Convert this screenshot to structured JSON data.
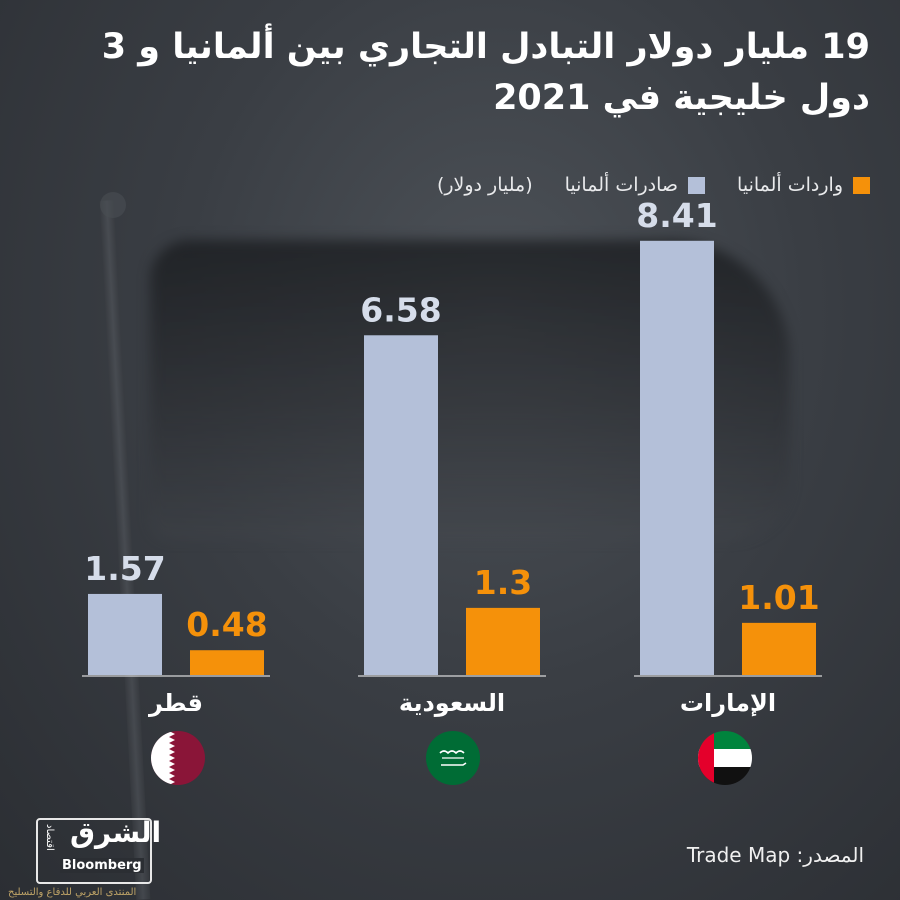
{
  "title": "19 مليار دولار التبادل التجاري بين ألمانيا و 3 دول خليجية في 2021",
  "legend": {
    "imports_label": "واردات ألمانيا",
    "exports_label": "صادرات ألمانيا",
    "unit_label": "(مليار دولار)"
  },
  "colors": {
    "exports": "#b4c0d9",
    "imports": "#f5910a",
    "background": "#33363b"
  },
  "chart_data": {
    "type": "bar",
    "categories": [
      "الإمارات",
      "السعودية",
      "قطر"
    ],
    "series": [
      {
        "name": "صادرات ألمانيا",
        "values": [
          8.41,
          6.58,
          1.57
        ]
      },
      {
        "name": "واردات ألمانيا",
        "values": [
          1.01,
          1.3,
          0.48
        ]
      }
    ],
    "value_labels": [
      [
        "8.41",
        "6.58",
        "1.57"
      ],
      [
        "1.01",
        "1.3",
        "0.48"
      ]
    ],
    "ylim": [
      0,
      9.2
    ]
  },
  "flags": [
    "uae-flag-icon",
    "saudi-flag-icon",
    "qatar-flag-icon"
  ],
  "source": "المصدر: Trade Map",
  "logo": {
    "main": "الشرق",
    "sub": "اقتصاد",
    "partner": "Bloomberg",
    "partner_prefix": "مع"
  },
  "watermark": "المنتدى العربي للدفاع والتسليح"
}
